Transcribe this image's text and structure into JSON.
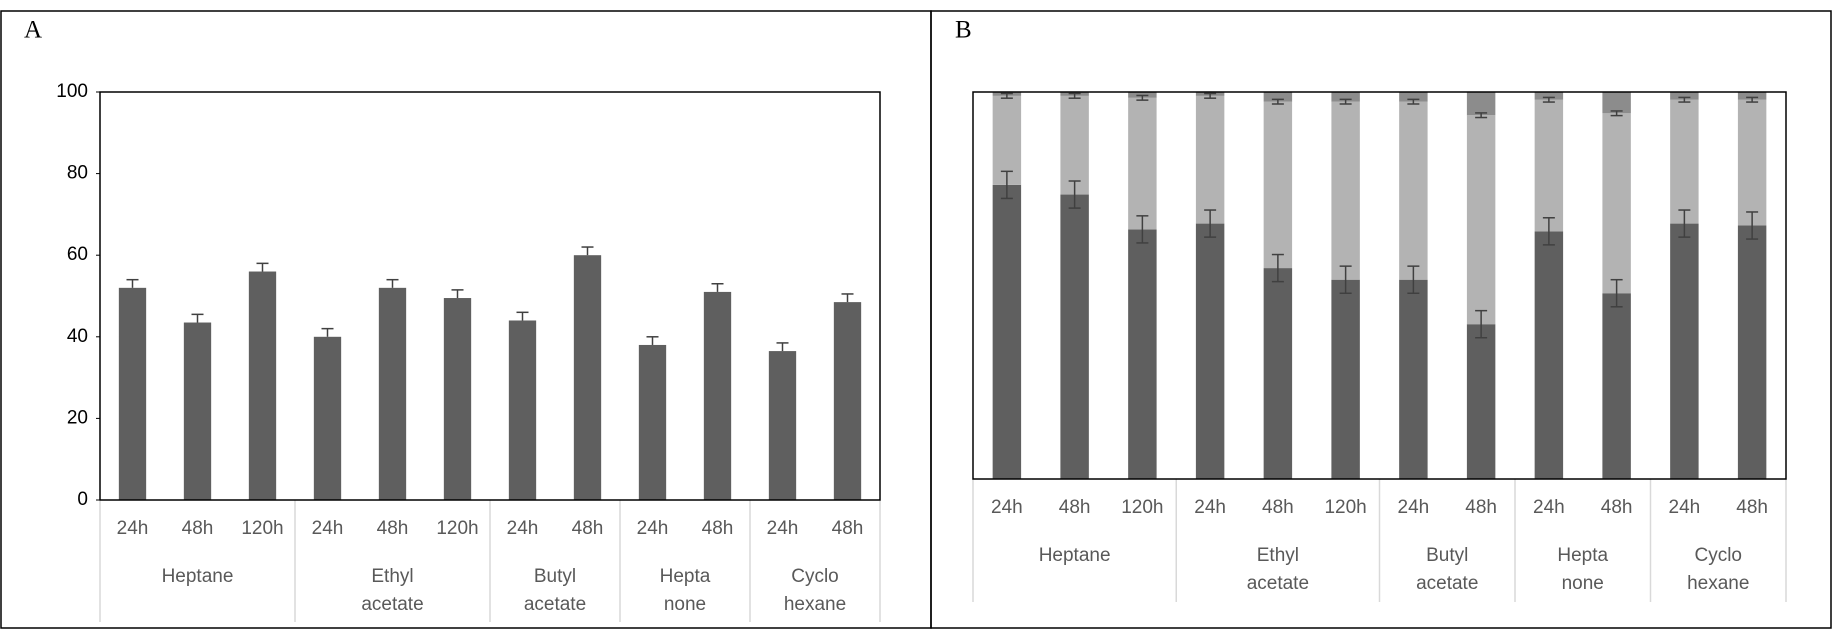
{
  "chart_data": [
    {
      "type": "bar",
      "panel_label": "A",
      "color": "#5f5f5f",
      "error_bars": "plus",
      "groups": [
        {
          "name": [
            "Heptane"
          ],
          "categories": [
            "24h",
            "48h",
            "120h"
          ]
        },
        {
          "name": [
            "Ethyl",
            "acetate"
          ],
          "categories": [
            "24h",
            "48h",
            "120h"
          ]
        },
        {
          "name": [
            "Butyl",
            "acetate"
          ],
          "categories": [
            "24h",
            "48h"
          ]
        },
        {
          "name": [
            "Hepta",
            "none"
          ],
          "categories": [
            "24h",
            "48h"
          ]
        },
        {
          "name": [
            "Cyclo",
            "hexane"
          ],
          "categories": [
            "24h",
            "48h"
          ]
        }
      ],
      "values": [
        52,
        43.5,
        56,
        40,
        52,
        49.5,
        44,
        60,
        38,
        51,
        36.5,
        48.5
      ],
      "errors": [
        2,
        2,
        2,
        2,
        2,
        2,
        2,
        2,
        2,
        2,
        2,
        2
      ],
      "ylim": [
        0,
        100
      ],
      "yticks": [
        0,
        20,
        40,
        60,
        80,
        100
      ]
    },
    {
      "type": "stacked_bar",
      "panel_label": "B",
      "error_bars": "both",
      "groups": [
        {
          "name": [
            "Heptane"
          ],
          "categories": [
            "24h",
            "48h",
            "120h"
          ]
        },
        {
          "name": [
            "Ethyl",
            "acetate"
          ],
          "categories": [
            "24h",
            "48h",
            "120h"
          ]
        },
        {
          "name": [
            "Butyl",
            "acetate"
          ],
          "categories": [
            "24h",
            "48h"
          ]
        },
        {
          "name": [
            "Hepta",
            "none"
          ],
          "categories": [
            "24h",
            "48h"
          ]
        },
        {
          "name": [
            "Cyclo",
            "hexane"
          ],
          "categories": [
            "24h",
            "48h"
          ]
        }
      ],
      "series": [
        {
          "color": "#5f5f5f",
          "values": [
            76,
            73.5,
            64.5,
            66,
            54.5,
            51.5,
            51.5,
            40,
            64,
            48,
            66,
            65.5
          ],
          "errors": [
            3.5,
            3.5,
            3.5,
            3.5,
            3.5,
            3.5,
            3.5,
            3.5,
            3.5,
            3.5,
            3.5,
            3.5
          ]
        },
        {
          "color": "#b3b3b3",
          "values": [
            23,
            25.5,
            34,
            33,
            43,
            46,
            46,
            54,
            34,
            46.5,
            32,
            32.5
          ],
          "errors": [
            0.6,
            0.6,
            0.6,
            0.6,
            0.6,
            0.6,
            0.6,
            0.6,
            0.6,
            0.6,
            0.6,
            0.6
          ]
        },
        {
          "color": "#8c8c8c",
          "values": [
            1,
            1,
            1.5,
            1,
            2.5,
            2.5,
            2.5,
            6,
            2,
            5.5,
            2,
            2
          ]
        }
      ],
      "ylim": [
        0,
        100
      ]
    }
  ]
}
